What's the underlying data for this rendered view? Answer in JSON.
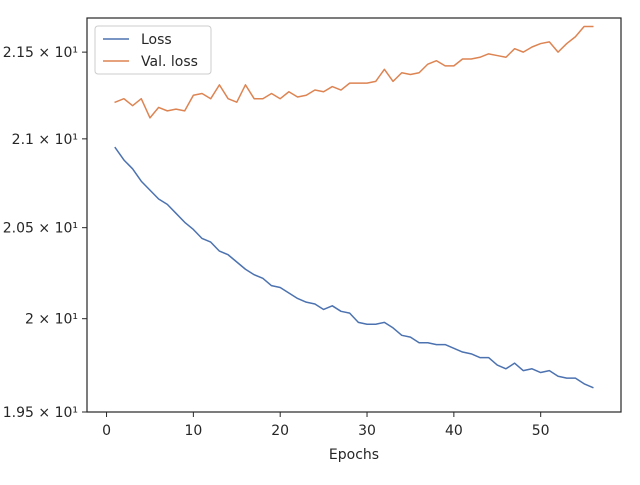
{
  "chart_data": {
    "type": "line",
    "title": "",
    "xlabel": "Epochs",
    "ylabel": "",
    "xlim": [
      -2.25,
      59.25
    ],
    "ylim": [
      19.5,
      21.7
    ],
    "y_scale": "log",
    "x_ticks": [
      0,
      10,
      20,
      30,
      40,
      50
    ],
    "x_tick_labels": [
      "0",
      "10",
      "20",
      "30",
      "40",
      "50"
    ],
    "y_ticks": [
      19.5,
      20.0,
      20.5,
      21.0,
      21.5
    ],
    "y_tick_labels": [
      "1.95 × 10¹",
      "2 × 10¹",
      "2.05 × 10¹",
      "2.1 × 10¹",
      "2.15 × 10¹"
    ],
    "grid": false,
    "legend_position": "upper-left",
    "x": [
      1,
      2,
      3,
      4,
      5,
      6,
      7,
      8,
      9,
      10,
      11,
      12,
      13,
      14,
      15,
      16,
      17,
      18,
      19,
      20,
      21,
      22,
      23,
      24,
      25,
      26,
      27,
      28,
      29,
      30,
      31,
      32,
      33,
      34,
      35,
      36,
      37,
      38,
      39,
      40,
      41,
      42,
      43,
      44,
      45,
      46,
      47,
      48,
      49,
      50,
      51,
      52,
      53,
      54,
      55,
      56
    ],
    "series": [
      {
        "name": "Loss",
        "color": "#4c72b0",
        "values": [
          20.95,
          20.88,
          20.83,
          20.76,
          20.71,
          20.66,
          20.63,
          20.58,
          20.53,
          20.49,
          20.44,
          20.42,
          20.37,
          20.35,
          20.31,
          20.27,
          20.24,
          20.22,
          20.18,
          20.17,
          20.14,
          20.11,
          20.09,
          20.08,
          20.05,
          20.07,
          20.04,
          20.03,
          19.98,
          19.97,
          19.97,
          19.98,
          19.95,
          19.91,
          19.9,
          19.87,
          19.87,
          19.86,
          19.86,
          19.84,
          19.82,
          19.81,
          19.79,
          19.79,
          19.75,
          19.73,
          19.76,
          19.72,
          19.73,
          19.71,
          19.72,
          19.69,
          19.68,
          19.68,
          19.65,
          19.63
        ]
      },
      {
        "name": "Val. loss",
        "color": "#dd8452",
        "values": [
          21.21,
          21.23,
          21.19,
          21.23,
          21.12,
          21.18,
          21.16,
          21.17,
          21.16,
          21.25,
          21.26,
          21.23,
          21.31,
          21.23,
          21.21,
          21.31,
          21.23,
          21.23,
          21.26,
          21.23,
          21.27,
          21.24,
          21.25,
          21.28,
          21.27,
          21.3,
          21.28,
          21.32,
          21.32,
          21.32,
          21.33,
          21.4,
          21.33,
          21.38,
          21.37,
          21.38,
          21.43,
          21.45,
          21.42,
          21.42,
          21.46,
          21.46,
          21.47,
          21.49,
          21.48,
          21.47,
          21.52,
          21.5,
          21.53,
          21.55,
          21.56,
          21.5,
          21.55,
          21.59,
          21.65,
          21.65
        ]
      }
    ]
  }
}
